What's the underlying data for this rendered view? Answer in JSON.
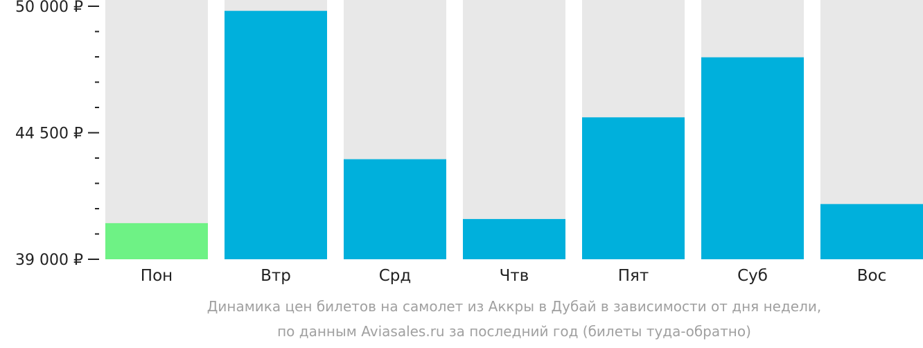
{
  "chart_data": {
    "type": "bar",
    "categories": [
      "Пон",
      "Втр",
      "Срд",
      "Чтв",
      "Пят",
      "Суб",
      "Вос"
    ],
    "values": [
      40570,
      49800,
      43350,
      40750,
      45170,
      47780,
      41400
    ],
    "ylim": [
      39000,
      50000
    ],
    "yticks": [
      {
        "value": 50000,
        "label": "50 000 ₽"
      },
      {
        "value": 44500,
        "label": "44 500 ₽"
      },
      {
        "value": 39000,
        "label": "39 000 ₽"
      }
    ],
    "minor_tick_step": 1100,
    "grid": false,
    "colors": {
      "bar": "#00b0dc",
      "highlight": "#6ef285",
      "background_bar": "#e8e8e8",
      "axis_text": "#222222"
    },
    "highlight_index": 0
  },
  "caption": {
    "line1": "Динамика цен билетов на самолет из Аккры в Дубай в зависимости от дня недели,",
    "line2": "по данным Aviasales.ru за последний год (билеты туда-обратно)"
  }
}
